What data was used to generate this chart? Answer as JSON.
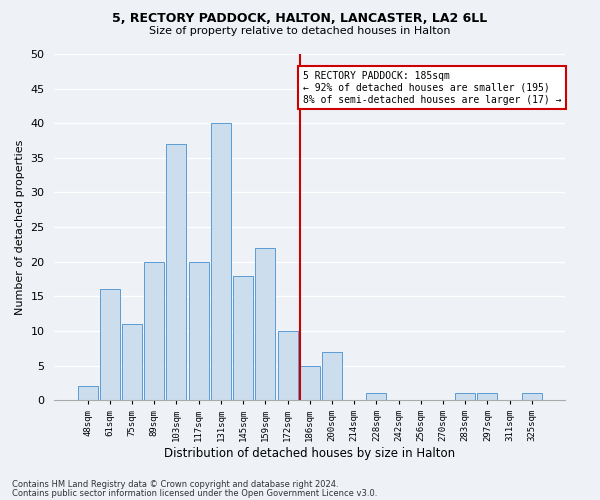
{
  "title1": "5, RECTORY PADDOCK, HALTON, LANCASTER, LA2 6LL",
  "title2": "Size of property relative to detached houses in Halton",
  "xlabel": "Distribution of detached houses by size in Halton",
  "ylabel": "Number of detached properties",
  "bar_labels": [
    "48sqm",
    "61sqm",
    "75sqm",
    "89sqm",
    "103sqm",
    "117sqm",
    "131sqm",
    "145sqm",
    "159sqm",
    "172sqm",
    "186sqm",
    "200sqm",
    "214sqm",
    "228sqm",
    "242sqm",
    "256sqm",
    "270sqm",
    "283sqm",
    "297sqm",
    "311sqm",
    "325sqm"
  ],
  "bar_values": [
    2,
    16,
    11,
    20,
    37,
    20,
    40,
    18,
    22,
    10,
    5,
    7,
    0,
    1,
    0,
    0,
    0,
    1,
    1,
    0,
    1
  ],
  "bar_color": "#ccdded",
  "bar_edge_color": "#5b9bd5",
  "vline_color": "#cc0000",
  "annotation_text": "5 RECTORY PADDOCK: 185sqm\n← 92% of detached houses are smaller (195)\n8% of semi-detached houses are larger (17) →",
  "annotation_box_color": "#cc0000",
  "ylim": [
    0,
    50
  ],
  "yticks": [
    0,
    5,
    10,
    15,
    20,
    25,
    30,
    35,
    40,
    45,
    50
  ],
  "footer1": "Contains HM Land Registry data © Crown copyright and database right 2024.",
  "footer2": "Contains public sector information licensed under the Open Government Licence v3.0.",
  "bg_color": "#eef2f7",
  "plot_bg_color": "#eef2f7",
  "grid_color": "#ffffff"
}
